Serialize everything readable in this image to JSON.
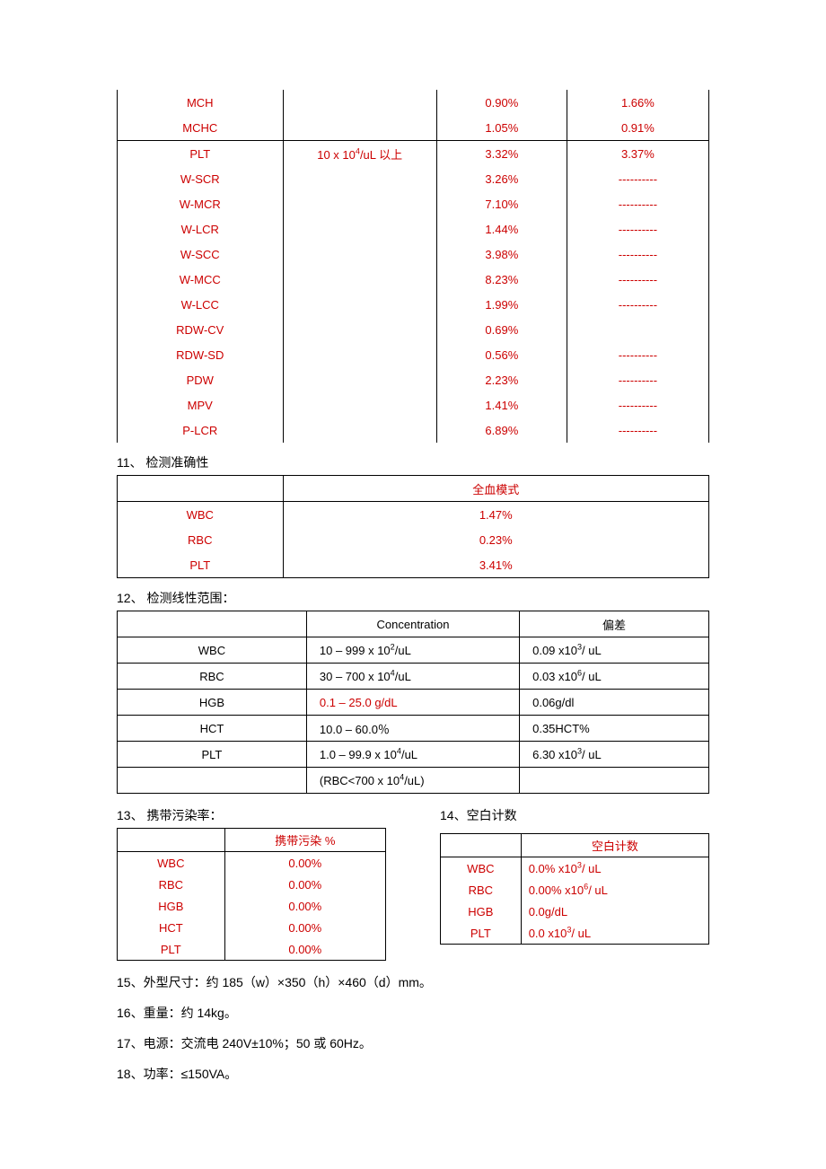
{
  "colors": {
    "text_red": "#cc0000",
    "text_black": "#000000",
    "border": "#000000",
    "background": "#ffffff"
  },
  "table1": {
    "rows": [
      {
        "p": "MCH",
        "c2": "",
        "c3": "0.90%",
        "c4": "1.66%",
        "divider_after": false
      },
      {
        "p": "MCHC",
        "c2": "",
        "c3": "1.05%",
        "c4": "0.91%",
        "divider_after": true
      },
      {
        "p": "PLT",
        "c2": "10 x 10⁴/uL  以上",
        "c3": "3.32%",
        "c4": "3.37%",
        "divider_after": false
      },
      {
        "p": "W-SCR",
        "c2": "",
        "c3": "3.26%",
        "c4": "----------",
        "divider_after": false
      },
      {
        "p": "W-MCR",
        "c2": "",
        "c3": "7.10%",
        "c4": "----------",
        "divider_after": false
      },
      {
        "p": "W-LCR",
        "c2": "",
        "c3": "1.44%",
        "c4": "----------",
        "divider_after": false
      },
      {
        "p": "W-SCC",
        "c2": "",
        "c3": "3.98%",
        "c4": "----------",
        "divider_after": false
      },
      {
        "p": "W-MCC",
        "c2": "",
        "c3": "8.23%",
        "c4": "----------",
        "divider_after": false
      },
      {
        "p": "W-LCC",
        "c2": "",
        "c3": "1.99%",
        "c4": "----------",
        "divider_after": false
      },
      {
        "p": "RDW-CV",
        "c2": "",
        "c3": "0.69%",
        "c4": "",
        "divider_after": false
      },
      {
        "p": "RDW-SD",
        "c2": "",
        "c3": "0.56%",
        "c4": "----------",
        "divider_after": false
      },
      {
        "p": "PDW",
        "c2": "",
        "c3": "2.23%",
        "c4": "----------",
        "divider_after": false
      },
      {
        "p": "MPV",
        "c2": "",
        "c3": "1.41%",
        "c4": "----------",
        "divider_after": false
      },
      {
        "p": "P-LCR",
        "c2": "",
        "c3": "6.89%",
        "c4": "----------",
        "divider_after": false
      }
    ]
  },
  "section11": {
    "heading": "11、 检测准确性",
    "header_c2": "全血模式",
    "rows": [
      {
        "p": "WBC",
        "v": "1.47%"
      },
      {
        "p": "RBC",
        "v": "0.23%"
      },
      {
        "p": "PLT",
        "v": "3.41%"
      }
    ]
  },
  "section12": {
    "heading": "12、 检测线性范围：",
    "header_c2": "Concentration",
    "header_c3": "偏差",
    "rows": [
      {
        "p": "WBC",
        "c2_html": "10 – 999 x 10<sup>2</sup>/uL",
        "c2_red": false,
        "c3_html": "0.09 x10<sup>3</sup>/ uL"
      },
      {
        "p": "RBC",
        "c2_html": "30 – 700 x 10<sup>4</sup>/uL",
        "c2_red": false,
        "c3_html": "0.03 x10<sup>6</sup>/ uL"
      },
      {
        "p": "HGB",
        "c2_html": "0.1 – 25.0 g/dL",
        "c2_red": true,
        "c3_html": "0.06g/dl"
      },
      {
        "p": "HCT",
        "c2_html": "10.0 – 60.0％",
        "c2_red": false,
        "c3_html": "0.35HCT%"
      },
      {
        "p": "PLT",
        "c2_html": "1.0 – 99.9 x 10<sup>4</sup>/uL",
        "c2_red": false,
        "c3_html": "6.30 x10<sup>3</sup>/ uL"
      }
    ],
    "extra_row": {
      "c2_html": "(RBC<700 x 10<sup>4</sup>/uL)"
    }
  },
  "section13": {
    "heading": "13、 携带污染率：",
    "header_c2": "携带污染 %",
    "rows": [
      {
        "p": "WBC",
        "v": "0.00%"
      },
      {
        "p": "RBC",
        "v": "0.00%"
      },
      {
        "p": "HGB",
        "v": "0.00%"
      },
      {
        "p": "HCT",
        "v": "0.00%"
      },
      {
        "p": "PLT",
        "v": "0.00%"
      }
    ]
  },
  "section14": {
    "heading": "14、空白计数",
    "header_c2": "空白计数",
    "rows": [
      {
        "p": "WBC",
        "v_html": "0.0% x10<sup>3</sup>/ uL"
      },
      {
        "p": "RBC",
        "v_html": "0.00% x10<sup>6</sup>/ uL"
      },
      {
        "p": "HGB",
        "v_html": "0.0g/dL"
      },
      {
        "p": "PLT",
        "v_html": "0.0 x10<sup>3</sup>/ uL"
      }
    ]
  },
  "paragraphs": [
    "15、外型尺寸：约 185（w）×350（h）×460（d）mm。",
    "16、重量：约 14kg。",
    "17、电源：交流电 240V±10%；50 或 60Hz。",
    "18、功率：≤150VA。"
  ]
}
